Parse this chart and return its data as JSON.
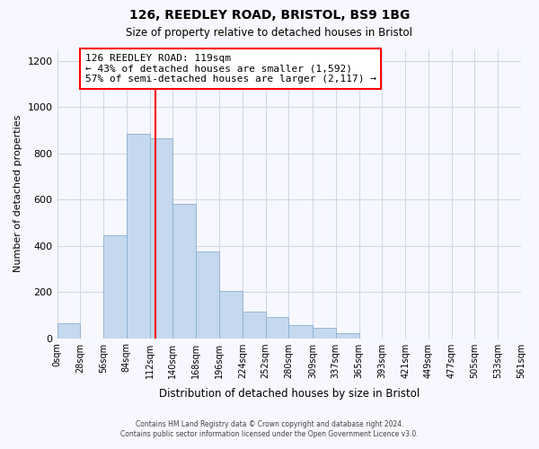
{
  "title": "126, REEDLEY ROAD, BRISTOL, BS9 1BG",
  "subtitle": "Size of property relative to detached houses in Bristol",
  "xlabel": "Distribution of detached houses by size in Bristol",
  "ylabel": "Number of detached properties",
  "bar_color": "#c5d8ee",
  "vline_x": 119,
  "vline_color": "red",
  "annotation_title": "126 REEDLEY ROAD: 119sqm",
  "annotation_line1": "← 43% of detached houses are smaller (1,592)",
  "annotation_line2": "57% of semi-detached houses are larger (2,117) →",
  "annotation_box_color": "white",
  "annotation_box_edge": "red",
  "footnote1": "Contains HM Land Registry data © Crown copyright and database right 2024.",
  "footnote2": "Contains public sector information licensed under the Open Government Licence v3.0.",
  "bin_edges": [
    0,
    28,
    56,
    84,
    112,
    140,
    168,
    196,
    224,
    252,
    280,
    309,
    337,
    365,
    393,
    421,
    449,
    477,
    505,
    533,
    561
  ],
  "bin_labels": [
    "0sqm",
    "28sqm",
    "56sqm",
    "84sqm",
    "112sqm",
    "140sqm",
    "168sqm",
    "196sqm",
    "224sqm",
    "252sqm",
    "280sqm",
    "309sqm",
    "337sqm",
    "365sqm",
    "393sqm",
    "421sqm",
    "449sqm",
    "477sqm",
    "505sqm",
    "533sqm",
    "561sqm"
  ],
  "counts": [
    65,
    0,
    445,
    885,
    865,
    580,
    375,
    205,
    115,
    90,
    55,
    45,
    20,
    0,
    0,
    0,
    0,
    0,
    0,
    0
  ],
  "ylim": [
    0,
    1250
  ],
  "yticks": [
    0,
    200,
    400,
    600,
    800,
    1000,
    1200
  ],
  "background_color": "#f7f8ff",
  "grid_color": "#d0d8e8"
}
